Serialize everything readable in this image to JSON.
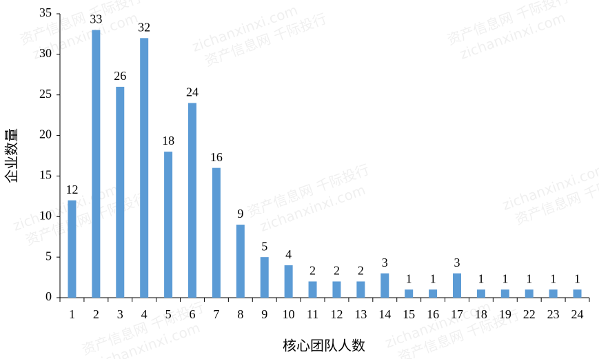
{
  "chart_data": {
    "type": "bar",
    "x_label": "核心团队人数",
    "y_label": "企业数量",
    "watermark": [
      "资产信息网 千际投行",
      "zichanxinxi.com"
    ],
    "categories": [
      "1",
      "2",
      "3",
      "4",
      "5",
      "6",
      "7",
      "8",
      "9",
      "10",
      "11",
      "12",
      "13",
      "14",
      "15",
      "16",
      "17",
      "18",
      "19",
      "22",
      "23",
      "24"
    ],
    "values": [
      12,
      33,
      26,
      32,
      18,
      24,
      16,
      9,
      5,
      4,
      2,
      2,
      2,
      3,
      1,
      1,
      3,
      1,
      1,
      1,
      1,
      1
    ],
    "color": "#5b9bd5",
    "ylim": [
      0,
      35
    ],
    "yticks": [
      0,
      5,
      10,
      15,
      20,
      25,
      30,
      35
    ],
    "grid": false
  }
}
